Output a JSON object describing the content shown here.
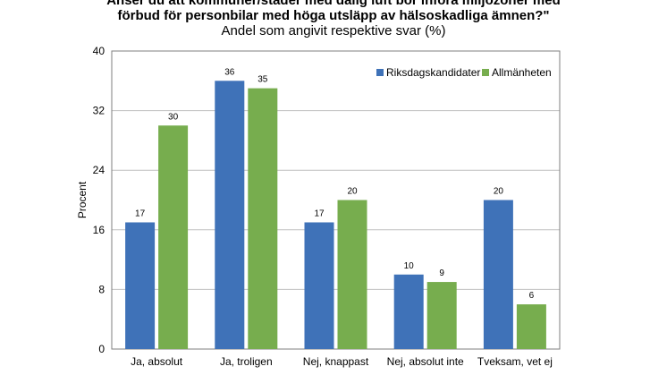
{
  "chart_data": {
    "type": "bar",
    "title_lines": [
      "Anser du att kommuner/städer med dålig luft bör införa miljözoner med",
      "förbud för personbilar med höga utsläpp av hälsoskadliga ämnen?\""
    ],
    "subtitle": "Andel som angivit respektive svar (%)",
    "ylabel": "Procent",
    "xlabel": "",
    "ylim": [
      0,
      40
    ],
    "yticks": [
      "0",
      "8",
      "16",
      "24",
      "32",
      "40"
    ],
    "categories": [
      "Ja, absolut",
      "Ja, troligen",
      "Nej, knappast",
      "Nej, absolut inte",
      "Tveksam, vet ej"
    ],
    "series": [
      {
        "name": "Riksdagskandidater",
        "color": "#3f72b8",
        "values": [
          17,
          36,
          17,
          10,
          20
        ]
      },
      {
        "name": "Allmänheten",
        "color": "#77ad4e",
        "values": [
          30,
          35,
          20,
          9,
          6
        ]
      }
    ],
    "legend_position": "top-right",
    "grid": true
  }
}
